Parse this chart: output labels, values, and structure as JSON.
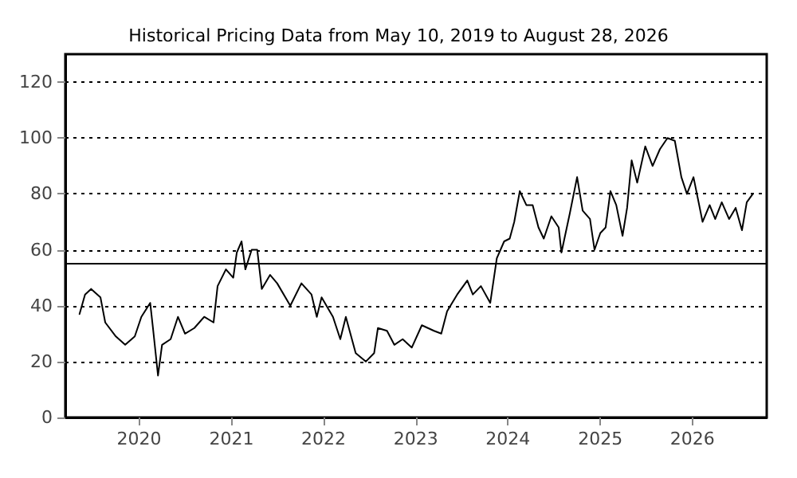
{
  "chart_data": {
    "type": "line",
    "title": "Historical Pricing Data from May 10, 2019 to August 28, 2026",
    "x": [
      "2019-05-10",
      "2019-06-01",
      "2019-06-25",
      "2019-08-01",
      "2019-08-20",
      "2019-10-01",
      "2019-11-07",
      "2019-12-15",
      "2020-01-10",
      "2020-02-14",
      "2020-02-25",
      "2020-03-16",
      "2020-04-01",
      "2020-05-05",
      "2020-06-03",
      "2020-07-01",
      "2020-08-07",
      "2020-09-15",
      "2020-10-22",
      "2020-11-07",
      "2020-12-10",
      "2021-01-08",
      "2021-01-22",
      "2021-02-10",
      "2021-02-25",
      "2021-03-22",
      "2021-04-13",
      "2021-05-01",
      "2021-06-03",
      "2021-07-01",
      "2021-08-22",
      "2021-10-05",
      "2021-11-14",
      "2021-12-05",
      "2021-12-24",
      "2022-02-07",
      "2022-03-08",
      "2022-03-30",
      "2022-05-08",
      "2022-06-17",
      "2022-07-20",
      "2022-08-04",
      "2022-09-09",
      "2022-10-08",
      "2022-11-10",
      "2022-12-16",
      "2023-01-25",
      "2023-03-14",
      "2023-04-12",
      "2023-05-05",
      "2023-06-14",
      "2023-07-24",
      "2023-08-15",
      "2023-09-16",
      "2023-10-23",
      "2023-11-18",
      "2023-12-17",
      "2024-01-08",
      "2024-01-26",
      "2024-02-17",
      "2024-03-14",
      "2024-04-08",
      "2024-05-01",
      "2024-05-22",
      "2024-06-21",
      "2024-07-20",
      "2024-07-31",
      "2024-09-02",
      "2024-10-01",
      "2024-10-23",
      "2024-11-21",
      "2024-12-09",
      "2025-01-01",
      "2025-01-22",
      "2025-02-10",
      "2025-03-05",
      "2025-03-30",
      "2025-04-17",
      "2025-05-05",
      "2025-05-27",
      "2025-06-28",
      "2025-07-27",
      "2025-08-25",
      "2025-09-24",
      "2025-10-23",
      "2025-11-18",
      "2025-12-10",
      "2026-01-05",
      "2026-02-10",
      "2026-03-10",
      "2026-04-01",
      "2026-04-27",
      "2026-05-26",
      "2026-06-21",
      "2026-07-16",
      "2026-08-04",
      "2026-08-28"
    ],
    "series": [
      {
        "color": "#000000",
        "values": [
          37,
          44,
          46,
          43,
          34,
          29,
          26,
          29,
          36,
          41,
          32,
          15,
          26,
          28,
          36,
          30,
          32,
          36,
          34,
          47,
          53,
          50,
          59,
          63,
          53,
          60,
          60,
          46,
          51,
          48,
          40,
          48,
          44,
          36,
          43,
          36,
          28,
          36,
          23,
          20,
          23,
          32,
          31,
          26,
          28,
          25,
          33,
          31,
          30,
          38,
          44,
          49,
          44,
          47,
          41,
          57,
          63,
          64,
          70,
          81,
          76,
          76,
          68,
          64,
          72,
          68,
          59,
          73,
          86,
          74,
          71,
          60,
          66,
          68,
          81,
          76,
          65,
          75,
          92,
          84,
          97,
          90,
          96,
          100,
          99,
          86,
          80,
          86,
          70,
          76,
          71,
          77,
          71,
          75,
          67,
          77,
          80
        ]
      }
    ],
    "xlim": [
      "2019-03-15",
      "2026-10-22"
    ],
    "xticks": [
      "2020",
      "2021",
      "2022",
      "2023",
      "2024",
      "2025",
      "2026"
    ],
    "ylim": [
      0,
      130
    ],
    "yticks": [
      0,
      20,
      40,
      60,
      80,
      100,
      120
    ],
    "grid": "y",
    "ref_lines": [
      {
        "axis": "y",
        "value": 55,
        "color": "#000000",
        "line_style": "solid"
      }
    ],
    "marker": "none",
    "line_style": "solid"
  }
}
